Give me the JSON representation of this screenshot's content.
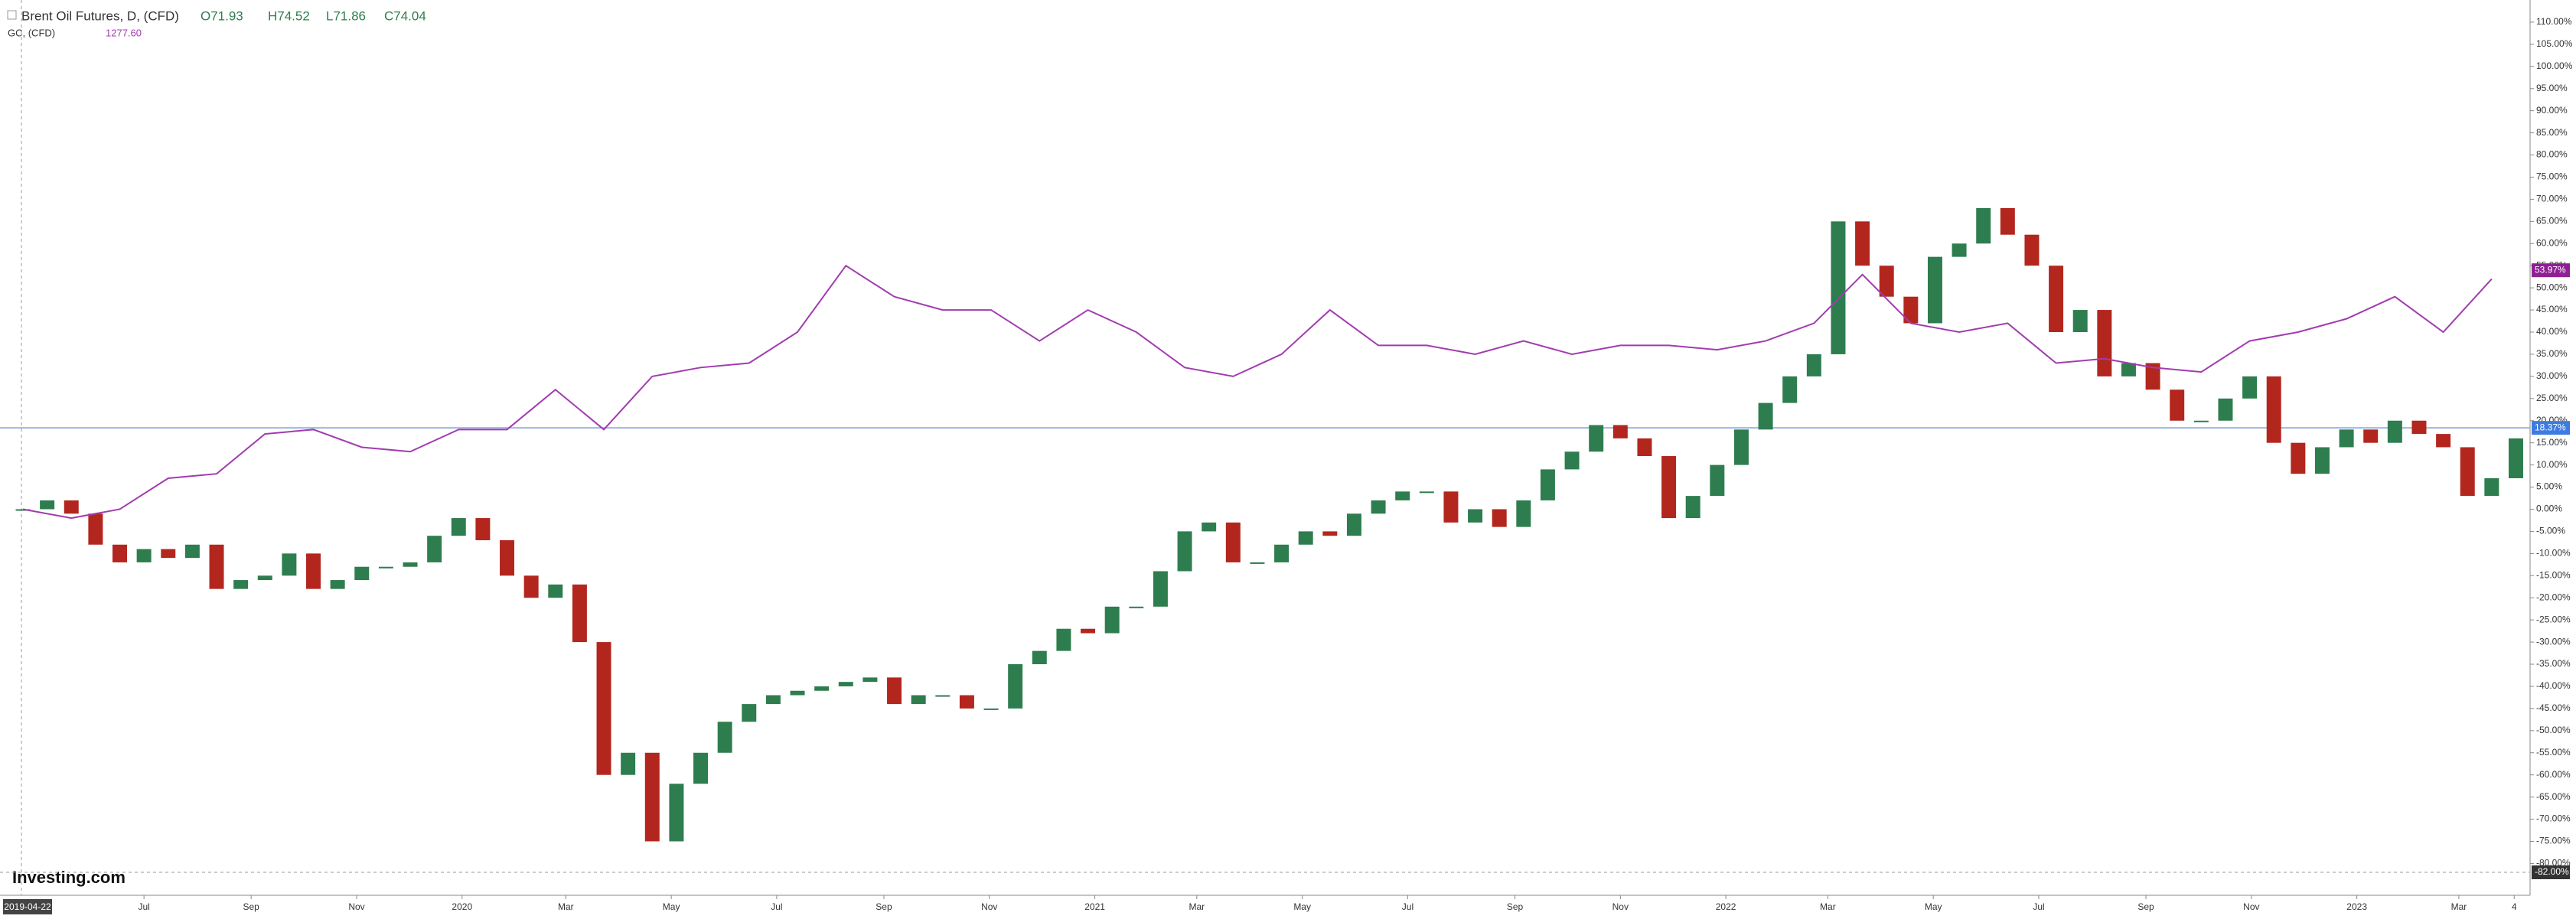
{
  "chart_data": {
    "type": "candlestick-line",
    "header": {
      "ohlc": [
        "O71.93",
        "H74.52",
        "L71.86",
        "C74.04"
      ],
      "overlay_price": "1277.60"
    },
    "start_label": "2019-04-22",
    "brand": "Investing.com",
    "series": [
      {
        "name": "Brent Oil Futures, D, (CFD)",
        "up_color": "#2e7d4f",
        "down_color": "#b3261e",
        "x": [
          0,
          14,
          28,
          42,
          56,
          70,
          84,
          98,
          112,
          126,
          140,
          154,
          168,
          182,
          196,
          210,
          224,
          238,
          252,
          266,
          280,
          294,
          308,
          322,
          336,
          350,
          364,
          378,
          392,
          406,
          420,
          434,
          448,
          462,
          476,
          490,
          504,
          518,
          532,
          546,
          560,
          574,
          588,
          602,
          616,
          630,
          644,
          658,
          672,
          686,
          700,
          714,
          728,
          742,
          756,
          770,
          784,
          798,
          812,
          826,
          840,
          854,
          868,
          882,
          896,
          910,
          924,
          938,
          952,
          966,
          980,
          994,
          1008,
          1022,
          1036,
          1050,
          1064,
          1078,
          1092,
          1106,
          1120,
          1134,
          1148,
          1162,
          1176,
          1190,
          1204,
          1218,
          1232,
          1246,
          1260,
          1274,
          1288,
          1302,
          1316,
          1330,
          1344,
          1358,
          1372,
          1386,
          1400,
          1414,
          1428,
          1442
        ],
        "values": [
          0,
          2,
          -1,
          -8,
          -12,
          -9,
          -11,
          -8,
          -18,
          -16,
          -15,
          -10,
          -18,
          -16,
          -13,
          -13,
          -12,
          -6,
          -2,
          -7,
          -15,
          -20,
          -17,
          -30,
          -60,
          -55,
          -75,
          -62,
          -55,
          -48,
          -44,
          -42,
          -41,
          -40,
          -39,
          -38,
          -44,
          -42,
          -42,
          -45,
          -45,
          -35,
          -32,
          -27,
          -28,
          -22,
          -22,
          -14,
          -5,
          -3,
          -12,
          -12,
          -8,
          -5,
          -6,
          -1,
          2,
          4,
          4,
          -3,
          0,
          -4,
          2,
          9,
          13,
          19,
          16,
          12,
          -2,
          3,
          10,
          18,
          24,
          30,
          35,
          65,
          55,
          48,
          42,
          57,
          60,
          68,
          62,
          55,
          40,
          45,
          30,
          33,
          27,
          20,
          20,
          25,
          30,
          15,
          8,
          14,
          18,
          15,
          20,
          17,
          14,
          3,
          7,
          16
        ]
      },
      {
        "name": "GC, (CFD)",
        "color": "#a23bb0",
        "x": [
          0,
          28,
          56,
          84,
          112,
          140,
          168,
          196,
          224,
          252,
          280,
          308,
          336,
          364,
          392,
          420,
          448,
          476,
          504,
          532,
          560,
          588,
          616,
          644,
          672,
          700,
          728,
          756,
          784,
          812,
          840,
          868,
          896,
          924,
          952,
          980,
          1008,
          1036,
          1064,
          1092,
          1120,
          1148,
          1176,
          1204,
          1232,
          1260,
          1288,
          1316,
          1344,
          1372,
          1400,
          1428
        ],
        "values": [
          0,
          -2,
          0,
          7,
          8,
          17,
          18,
          14,
          13,
          18,
          18,
          27,
          18,
          30,
          32,
          33,
          40,
          55,
          48,
          45,
          45,
          38,
          45,
          40,
          32,
          30,
          35,
          45,
          37,
          37,
          35,
          38,
          35,
          37,
          37,
          36,
          38,
          42,
          53,
          42,
          40,
          42,
          33,
          34,
          32,
          31,
          38,
          40,
          43,
          48,
          40,
          52
        ]
      }
    ],
    "last_labels": [
      {
        "value": 53.97,
        "label": "53.97%",
        "color": "#8e1f94"
      },
      {
        "value": 18.37,
        "label": "18.37%",
        "color": "#3d7be0"
      },
      {
        "value": -82,
        "label": "-82.00%",
        "color": "#333333"
      }
    ],
    "price_line": 18.37,
    "xlim": [
      0,
      1450
    ],
    "ylim": [
      -82,
      115
    ],
    "xticks": [
      {
        "value": 70,
        "label": "Jul"
      },
      {
        "value": 132,
        "label": "Sep"
      },
      {
        "value": 193,
        "label": "Nov"
      },
      {
        "value": 254,
        "label": "2020"
      },
      {
        "value": 314,
        "label": "Mar"
      },
      {
        "value": 375,
        "label": "May"
      },
      {
        "value": 436,
        "label": "Jul"
      },
      {
        "value": 498,
        "label": "Sep"
      },
      {
        "value": 559,
        "label": "Nov"
      },
      {
        "value": 620,
        "label": "2021"
      },
      {
        "value": 679,
        "label": "Mar"
      },
      {
        "value": 740,
        "label": "May"
      },
      {
        "value": 801,
        "label": "Jul"
      },
      {
        "value": 863,
        "label": "Sep"
      },
      {
        "value": 924,
        "label": "Nov"
      },
      {
        "value": 985,
        "label": "2022"
      },
      {
        "value": 1044,
        "label": "Mar"
      },
      {
        "value": 1105,
        "label": "May"
      },
      {
        "value": 1166,
        "label": "Jul"
      },
      {
        "value": 1228,
        "label": "Sep"
      },
      {
        "value": 1289,
        "label": "Nov"
      },
      {
        "value": 1350,
        "label": "2023"
      },
      {
        "value": 1409,
        "label": "Mar"
      },
      {
        "value": 1441,
        "label": "4"
      }
    ],
    "yticks": [
      {
        "value": 110,
        "label": "110.00%"
      },
      {
        "value": 105,
        "label": "105.00%"
      },
      {
        "value": 100,
        "label": "100.00%"
      },
      {
        "value": 95,
        "label": "95.00%"
      },
      {
        "value": 90,
        "label": "90.00%"
      },
      {
        "value": 85,
        "label": "85.00%"
      },
      {
        "value": 80,
        "label": "80.00%"
      },
      {
        "value": 75,
        "label": "75.00%"
      },
      {
        "value": 70,
        "label": "70.00%"
      },
      {
        "value": 65,
        "label": "65.00%"
      },
      {
        "value": 60,
        "label": "60.00%"
      },
      {
        "value": 55,
        "label": "55.00%"
      },
      {
        "value": 50,
        "label": "50.00%"
      },
      {
        "value": 45,
        "label": "45.00%"
      },
      {
        "value": 40,
        "label": "40.00%"
      },
      {
        "value": 35,
        "label": "35.00%"
      },
      {
        "value": 30,
        "label": "30.00%"
      },
      {
        "value": 25,
        "label": "25.00%"
      },
      {
        "value": 20,
        "label": "20.00%"
      },
      {
        "value": 15,
        "label": "15.00%"
      },
      {
        "value": 10,
        "label": "10.00%"
      },
      {
        "value": 5,
        "label": "5.00%"
      },
      {
        "value": 0,
        "label": "0.00%"
      },
      {
        "value": -5,
        "label": "-5.00%"
      },
      {
        "value": -10,
        "label": "-10.00%"
      },
      {
        "value": -15,
        "label": "-15.00%"
      },
      {
        "value": -20,
        "label": "-20.00%"
      },
      {
        "value": -25,
        "label": "-25.00%"
      },
      {
        "value": -30,
        "label": "-30.00%"
      },
      {
        "value": -35,
        "label": "-35.00%"
      },
      {
        "value": -40,
        "label": "-40.00%"
      },
      {
        "value": -45,
        "label": "-45.00%"
      },
      {
        "value": -50,
        "label": "-50.00%"
      },
      {
        "value": -55,
        "label": "-55.00%"
      },
      {
        "value": -60,
        "label": "-60.00%"
      },
      {
        "value": -65,
        "label": "-65.00%"
      },
      {
        "value": -70,
        "label": "-70.00%"
      },
      {
        "value": -75,
        "label": "-75.00%"
      },
      {
        "value": -80,
        "label": "-80.00%"
      }
    ]
  }
}
